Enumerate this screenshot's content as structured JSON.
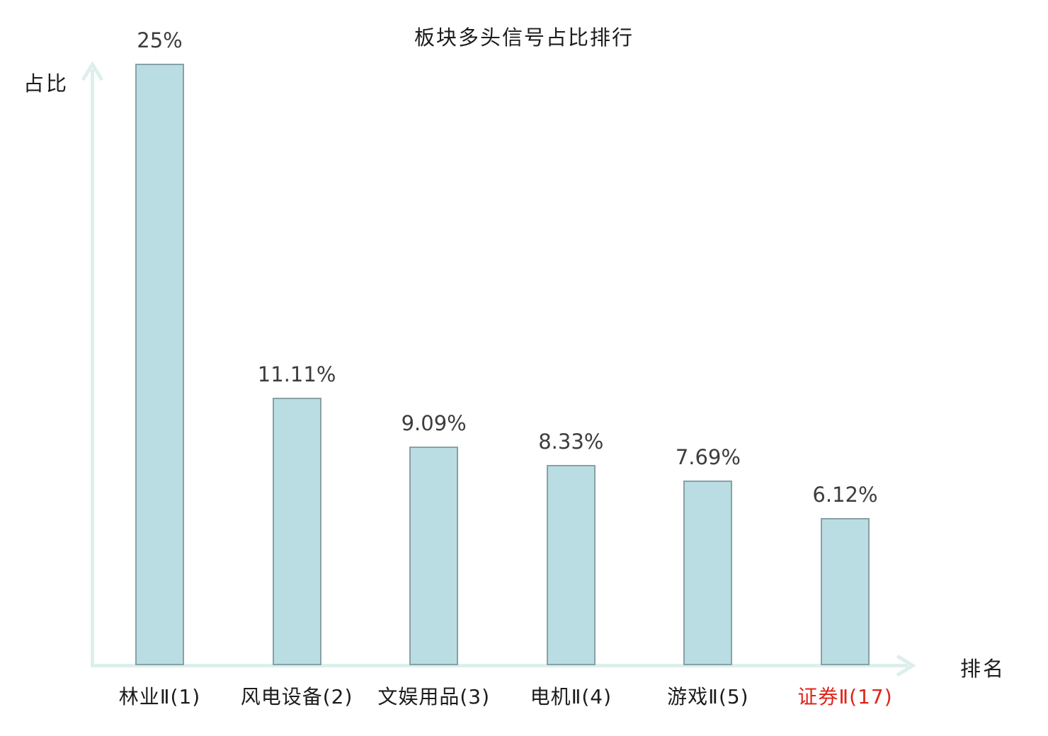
{
  "title": "板块多头信号占比排行",
  "axes": {
    "y_label": "占比",
    "x_label": "排名"
  },
  "chart_data": {
    "type": "bar",
    "title": "板块多头信号占比排行",
    "xlabel": "排名",
    "ylabel": "占比",
    "categories": [
      "林业Ⅱ(1)",
      "风电设备(2)",
      "文娱用品(3)",
      "电机Ⅱ(4)",
      "游戏Ⅱ(5)",
      "证券Ⅱ(17)"
    ],
    "values": [
      25,
      11.11,
      9.09,
      8.33,
      7.69,
      6.12
    ],
    "value_labels": [
      "25%",
      "11.11%",
      "9.09%",
      "8.33%",
      "7.69%",
      "6.12%"
    ],
    "highlight_index": 5,
    "ylim": [
      0,
      25
    ],
    "grid": false,
    "legend": null,
    "colors": {
      "bar_fill": "#b9dde2",
      "bar_border": "#87a1a7",
      "axis": "#ddefeb",
      "value_text": "#3d3d3d",
      "tick_text": "#1c1c1c",
      "highlight_text": "#e02318"
    }
  }
}
